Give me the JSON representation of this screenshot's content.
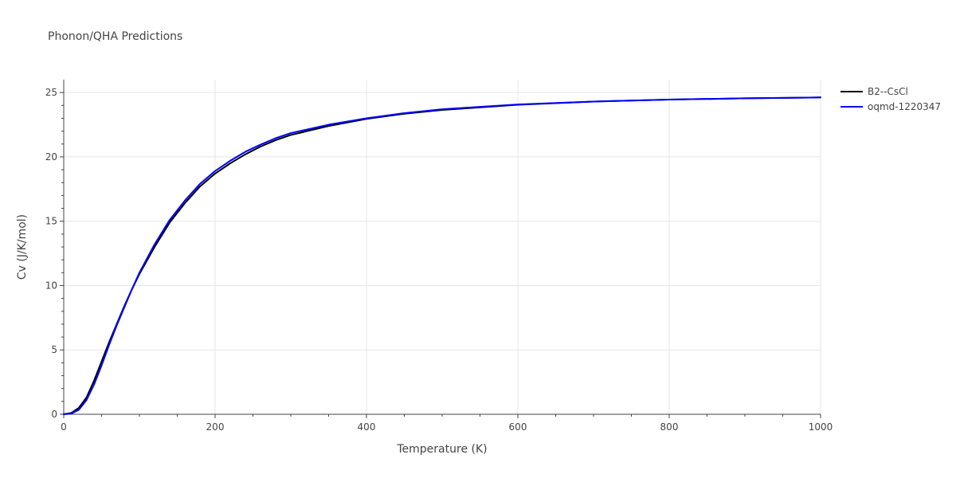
{
  "chart_data": {
    "type": "line",
    "title": "Phonon/QHA Predictions",
    "xlabel": "Temperature (K)",
    "ylabel": "Cv (J/K/mol)",
    "xlim": [
      0,
      1000
    ],
    "ylim": [
      0,
      26
    ],
    "x_ticks": [
      0,
      200,
      400,
      600,
      800,
      1000
    ],
    "y_ticks": [
      0,
      5,
      10,
      15,
      20,
      25
    ],
    "grid": true,
    "legend_position": "top-right",
    "series": [
      {
        "name": "B2--CsCl",
        "color": "#000000",
        "x": [
          0,
          10,
          20,
          30,
          40,
          50,
          60,
          70,
          80,
          90,
          100,
          120,
          140,
          160,
          180,
          200,
          220,
          240,
          260,
          280,
          300,
          350,
          400,
          450,
          500,
          600,
          700,
          800,
          900,
          1000
        ],
        "y": [
          0,
          0.1,
          0.5,
          1.3,
          2.6,
          4.1,
          5.6,
          7.0,
          8.4,
          9.7,
          10.9,
          13.0,
          14.9,
          16.4,
          17.7,
          18.7,
          19.5,
          20.2,
          20.8,
          21.3,
          21.7,
          22.4,
          22.95,
          23.35,
          23.65,
          24.05,
          24.3,
          24.45,
          24.55,
          24.62
        ]
      },
      {
        "name": "oqmd-1220347",
        "color": "#0000ff",
        "x": [
          0,
          10,
          20,
          30,
          40,
          50,
          60,
          70,
          80,
          90,
          100,
          120,
          140,
          160,
          180,
          200,
          220,
          240,
          260,
          280,
          300,
          350,
          400,
          450,
          500,
          600,
          700,
          800,
          900,
          1000
        ],
        "y": [
          0,
          0.05,
          0.35,
          1.1,
          2.3,
          3.8,
          5.4,
          6.9,
          8.3,
          9.7,
          11.0,
          13.2,
          15.1,
          16.6,
          17.9,
          18.9,
          19.7,
          20.4,
          20.95,
          21.45,
          21.85,
          22.5,
          23.0,
          23.4,
          23.7,
          24.07,
          24.3,
          24.45,
          24.55,
          24.62
        ]
      }
    ]
  }
}
